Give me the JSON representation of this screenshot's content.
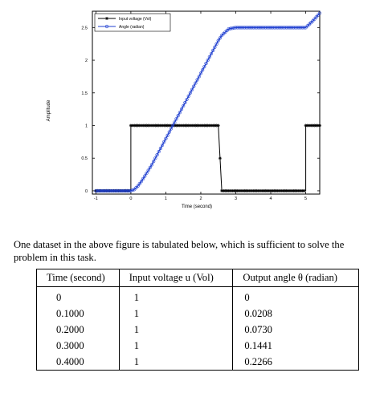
{
  "chart_data": {
    "type": "line",
    "xlabel": "Time (second)",
    "ylabel": "Amplitude",
    "xlim": [
      -1.1,
      5.4
    ],
    "ylim": [
      -0.05,
      2.75
    ],
    "xticks": [
      "-1",
      "0",
      "1",
      "2",
      "3",
      "4",
      "5"
    ],
    "yticks": [
      "0",
      "0.5",
      "1",
      "1.5",
      "2",
      "2.5"
    ],
    "legend_placement": "top-left",
    "grid": false,
    "series": [
      {
        "name": "Input voltage (Vol)",
        "color": "#000000",
        "marker": "asterisk",
        "x": [
          -1.0,
          -0.05,
          0.0,
          0.0,
          2.5,
          2.5,
          2.6,
          4.95,
          5.0,
          5.0,
          5.4
        ],
        "y": [
          0,
          0,
          0,
          1,
          1,
          1,
          0,
          0,
          0,
          1,
          1
        ]
      },
      {
        "name": "Angle (radian)",
        "color": "#1f3fd0",
        "marker": "circle",
        "x": [
          -1.0,
          0.0,
          0.1,
          0.2,
          0.3,
          0.4,
          0.6,
          1.0,
          1.5,
          2.0,
          2.5,
          2.6,
          2.8,
          3.0,
          3.5,
          4.0,
          4.5,
          5.0,
          5.2,
          5.4
        ],
        "y": [
          0,
          0,
          0.0208,
          0.073,
          0.1441,
          0.2266,
          0.4,
          0.8,
          1.3,
          1.8,
          2.3,
          2.38,
          2.48,
          2.5,
          2.5,
          2.5,
          2.5,
          2.5,
          2.6,
          2.72
        ]
      }
    ]
  },
  "text": {
    "paragraph": "One dataset in the above figure is tabulated below, which is sufficient to solve the problem in this task."
  },
  "table": {
    "headers": [
      "Time (second)",
      "Input voltage u (Vol)",
      "Output angle θ (radian)"
    ],
    "rows": [
      [
        "0",
        "1",
        "0"
      ],
      [
        "0.1000",
        "1",
        "0.0208"
      ],
      [
        "0.2000",
        "1",
        "0.0730"
      ],
      [
        "0.3000",
        "1",
        "0.1441"
      ],
      [
        "0.4000",
        "1",
        "0.2266"
      ]
    ]
  }
}
